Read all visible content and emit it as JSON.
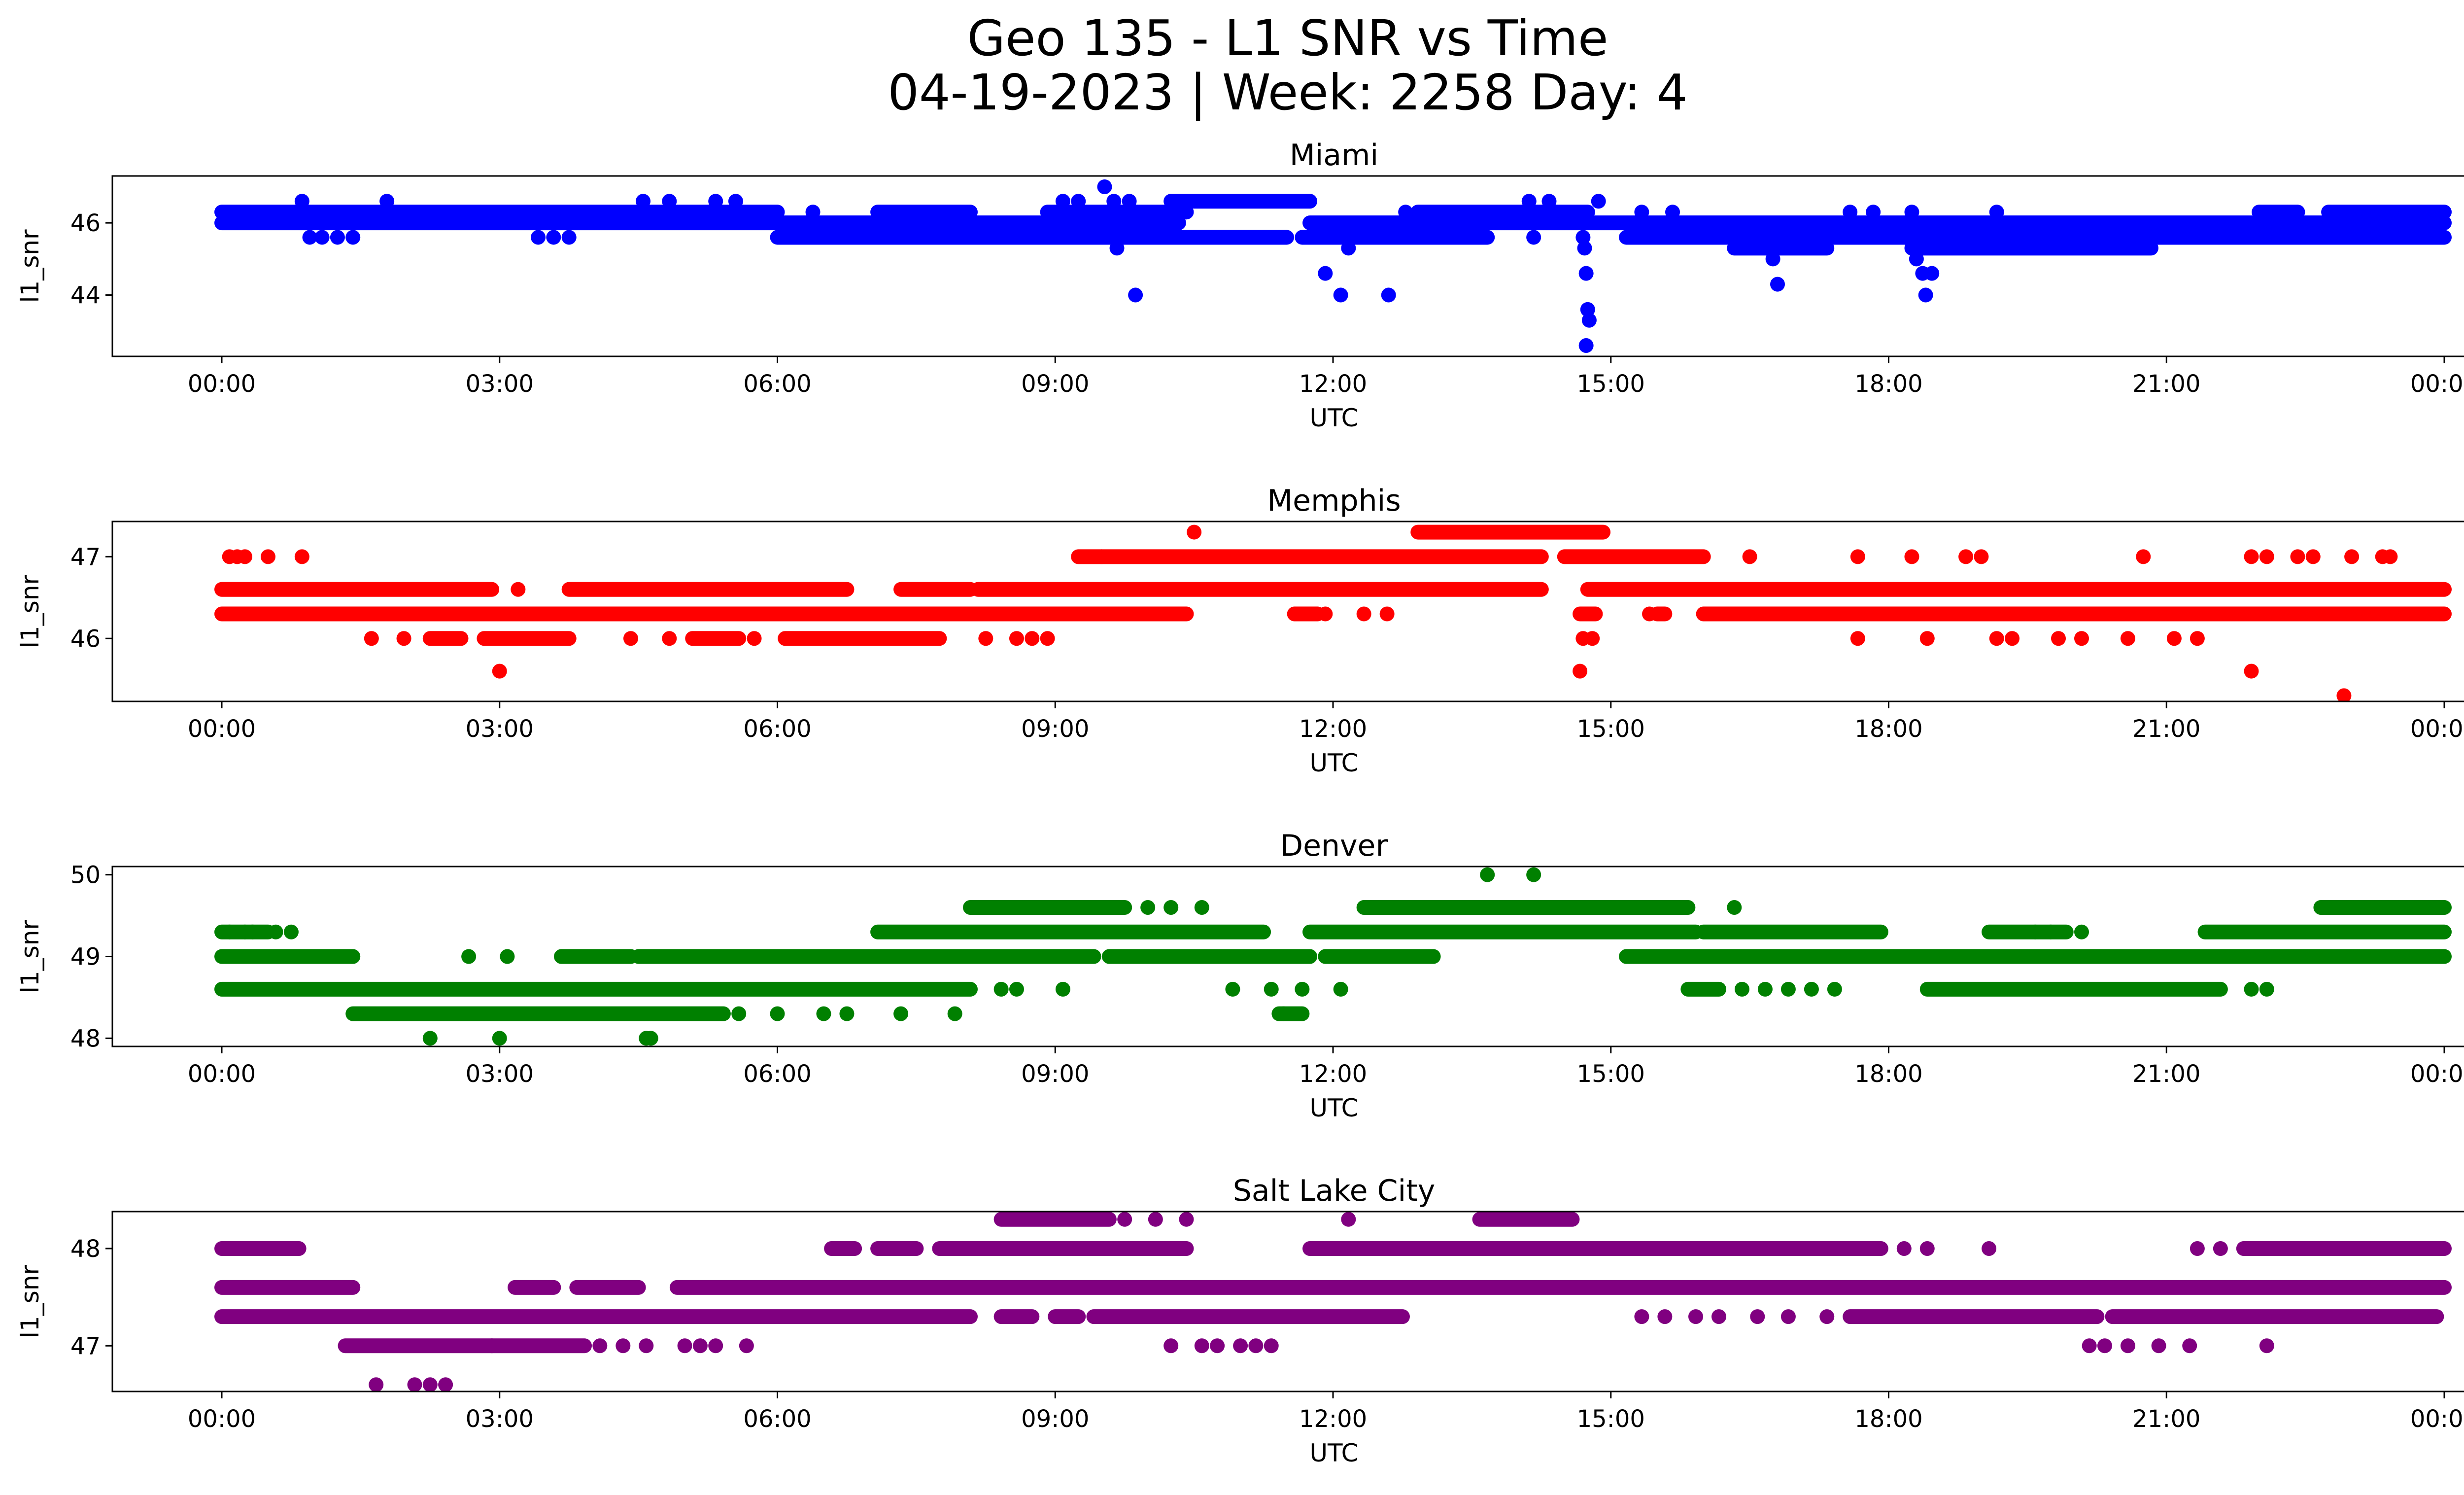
{
  "figure": {
    "title_line1": "Geo 135 - L1 SNR vs Time",
    "title_line2": "04-19-2023 | Week: 2258 Day: 4"
  },
  "chart_data": [
    {
      "type": "scatter",
      "title": "Miami",
      "xlabel": "UTC",
      "ylabel": "l1_snr",
      "color": "#0000ff",
      "xlim": [
        "2023-04-19 00:00",
        "2023-04-20 00:00"
      ],
      "x_ticks": [
        "00:00",
        "03:00",
        "06:00",
        "09:00",
        "12:00",
        "15:00",
        "18:00",
        "21:00",
        "00:00"
      ],
      "ylim": [
        42.3,
        47.3
      ],
      "y_ticks": [
        44,
        46
      ],
      "bands": [
        {
          "y": 46.3,
          "segments": [
            [
              "00:00",
              "06:00"
            ],
            [
              "07:05",
              "08:05"
            ],
            [
              "08:55",
              "10:25"
            ],
            [
              "12:55",
              "14:45"
            ],
            [
              "22:00",
              "22:25"
            ],
            [
              "22:45",
              "24:00"
            ]
          ]
        },
        {
          "y": 46.6,
          "segments": [
            [
              "10:15",
              "11:45"
            ]
          ]
        },
        {
          "y": 46.0,
          "segments": [
            [
              "00:00",
              "10:20"
            ],
            [
              "11:45",
              "24:00"
            ]
          ]
        },
        {
          "y": 45.6,
          "segments": [
            [
              "06:00",
              "11:30"
            ],
            [
              "11:40",
              "13:40"
            ],
            [
              "15:10",
              "24:00"
            ]
          ]
        },
        {
          "y": 45.3,
          "segments": [
            [
              "16:20",
              "17:20"
            ],
            [
              "18:15",
              "20:50"
            ]
          ]
        }
      ],
      "points": [
        [
          "00:52",
          46.6
        ],
        [
          "01:47",
          46.6
        ],
        [
          "04:33",
          46.6
        ],
        [
          "04:50",
          46.6
        ],
        [
          "05:20",
          46.6
        ],
        [
          "05:33",
          46.6
        ],
        [
          "06:23",
          46.3
        ],
        [
          "00:57",
          45.6
        ],
        [
          "01:05",
          45.6
        ],
        [
          "01:15",
          45.6
        ],
        [
          "01:25",
          45.6
        ],
        [
          "03:25",
          45.6
        ],
        [
          "03:35",
          45.6
        ],
        [
          "03:45",
          45.6
        ],
        [
          "09:05",
          46.6
        ],
        [
          "09:15",
          46.6
        ],
        [
          "09:32",
          47.0
        ],
        [
          "09:38",
          46.6
        ],
        [
          "09:48",
          46.6
        ],
        [
          "09:52",
          44.0
        ],
        [
          "09:40",
          45.3
        ],
        [
          "11:55",
          44.6
        ],
        [
          "12:05",
          44.0
        ],
        [
          "12:10",
          45.3
        ],
        [
          "12:36",
          44.0
        ],
        [
          "12:47",
          46.3
        ],
        [
          "14:07",
          46.6
        ],
        [
          "14:10",
          45.6
        ],
        [
          "14:20",
          46.6
        ],
        [
          "14:42",
          45.6
        ],
        [
          "14:43",
          45.3
        ],
        [
          "14:44",
          44.6
        ],
        [
          "14:45",
          43.6
        ],
        [
          "14:46",
          43.3
        ],
        [
          "14:44",
          42.6
        ],
        [
          "14:52",
          46.6
        ],
        [
          "15:20",
          46.3
        ],
        [
          "15:40",
          46.3
        ],
        [
          "16:45",
          45.0
        ],
        [
          "16:48",
          44.3
        ],
        [
          "17:35",
          46.3
        ],
        [
          "17:50",
          46.3
        ],
        [
          "18:15",
          46.3
        ],
        [
          "18:18",
          45.0
        ],
        [
          "18:22",
          44.6
        ],
        [
          "18:24",
          44.0
        ],
        [
          "18:28",
          44.6
        ],
        [
          "19:10",
          46.3
        ],
        [
          "22:52",
          45.6
        ],
        [
          "23:15",
          45.6
        ]
      ]
    },
    {
      "type": "scatter",
      "title": "Memphis",
      "xlabel": "UTC",
      "ylabel": "l1_snr",
      "color": "#ff0000",
      "xlim": [
        "2023-04-19 00:00",
        "2023-04-20 00:00"
      ],
      "x_ticks": [
        "00:00",
        "03:00",
        "06:00",
        "09:00",
        "12:00",
        "15:00",
        "18:00",
        "21:00",
        "00:00"
      ],
      "ylim": [
        45.23,
        47.43
      ],
      "y_ticks": [
        46,
        47
      ],
      "bands": [
        {
          "y": 47.3,
          "segments": [
            [
              "12:55",
              "14:55"
            ]
          ]
        },
        {
          "y": 47.0,
          "segments": [
            [
              "09:15",
              "14:15"
            ],
            [
              "14:30",
              "16:00"
            ]
          ]
        },
        {
          "y": 46.6,
          "segments": [
            [
              "00:00",
              "02:55"
            ],
            [
              "03:45",
              "06:45"
            ],
            [
              "07:20",
              "08:05"
            ],
            [
              "08:10",
              "14:15"
            ],
            [
              "14:45",
              "24:00"
            ]
          ]
        },
        {
          "y": 46.3,
          "segments": [
            [
              "00:00",
              "10:25"
            ],
            [
              "11:35",
              "11:50"
            ],
            [
              "14:40",
              "14:50"
            ],
            [
              "15:30",
              "15:35"
            ],
            [
              "16:00",
              "24:00"
            ]
          ]
        },
        {
          "y": 46.0,
          "segments": [
            [
              "02:15",
              "02:35"
            ],
            [
              "02:50",
              "03:45"
            ],
            [
              "05:05",
              "05:35"
            ],
            [
              "06:05",
              "07:45"
            ]
          ]
        }
      ],
      "points": [
        [
          "00:05",
          47.0
        ],
        [
          "00:10",
          47.0
        ],
        [
          "00:15",
          47.0
        ],
        [
          "00:30",
          47.0
        ],
        [
          "00:52",
          47.0
        ],
        [
          "01:37",
          46.0
        ],
        [
          "01:58",
          46.0
        ],
        [
          "03:00",
          45.6
        ],
        [
          "03:12",
          46.6
        ],
        [
          "04:25",
          46.0
        ],
        [
          "04:50",
          46.0
        ],
        [
          "05:45",
          46.0
        ],
        [
          "08:15",
          46.0
        ],
        [
          "08:35",
          46.0
        ],
        [
          "08:45",
          46.0
        ],
        [
          "08:55",
          46.0
        ],
        [
          "09:30",
          47.0
        ],
        [
          "10:30",
          47.3
        ],
        [
          "11:45",
          46.3
        ],
        [
          "11:55",
          46.3
        ],
        [
          "12:20",
          46.3
        ],
        [
          "12:35",
          46.3
        ],
        [
          "14:40",
          45.6
        ],
        [
          "14:42",
          46.0
        ],
        [
          "14:48",
          46.0
        ],
        [
          "15:25",
          46.3
        ],
        [
          "16:30",
          47.0
        ],
        [
          "17:40",
          47.0
        ],
        [
          "17:40",
          46.0
        ],
        [
          "18:15",
          47.0
        ],
        [
          "18:25",
          46.0
        ],
        [
          "18:50",
          47.0
        ],
        [
          "19:00",
          47.0
        ],
        [
          "19:10",
          46.0
        ],
        [
          "19:20",
          46.0
        ],
        [
          "19:50",
          46.0
        ],
        [
          "20:05",
          46.0
        ],
        [
          "20:35",
          46.0
        ],
        [
          "20:45",
          47.0
        ],
        [
          "21:05",
          46.0
        ],
        [
          "21:20",
          46.0
        ],
        [
          "21:55",
          47.0
        ],
        [
          "22:05",
          47.0
        ],
        [
          "22:25",
          47.0
        ],
        [
          "22:35",
          47.0
        ],
        [
          "23:00",
          47.0
        ],
        [
          "23:20",
          47.0
        ],
        [
          "23:25",
          47.0
        ],
        [
          "21:55",
          45.6
        ],
        [
          "22:55",
          45.3
        ]
      ]
    },
    {
      "type": "scatter",
      "title": "Denver",
      "xlabel": "UTC",
      "ylabel": "l1_snr",
      "color": "#008000",
      "xlim": [
        "2023-04-19 00:00",
        "2023-04-20 00:00"
      ],
      "x_ticks": [
        "00:00",
        "03:00",
        "06:00",
        "09:00",
        "12:00",
        "15:00",
        "18:00",
        "21:00",
        "00:00"
      ],
      "ylim": [
        47.9,
        50.1
      ],
      "y_ticks": [
        48,
        49,
        50
      ],
      "bands": [
        {
          "y": 49.6,
          "segments": [
            [
              "08:05",
              "09:45"
            ],
            [
              "12:20",
              "15:50"
            ],
            [
              "22:40",
              "24:00"
            ]
          ]
        },
        {
          "y": 49.3,
          "segments": [
            [
              "00:00",
              "00:30"
            ],
            [
              "07:05",
              "11:15"
            ],
            [
              "11:45",
              "15:55"
            ],
            [
              "16:00",
              "17:55"
            ],
            [
              "19:05",
              "19:55"
            ],
            [
              "21:25",
              "24:00"
            ]
          ]
        },
        {
          "y": 49.0,
          "segments": [
            [
              "00:00",
              "01:25"
            ],
            [
              "03:40",
              "04:25"
            ],
            [
              "04:30",
              "09:25"
            ],
            [
              "09:35",
              "11:45"
            ],
            [
              "11:55",
              "13:05"
            ],
            [
              "15:10",
              "24:00"
            ]
          ]
        },
        {
          "y": 48.6,
          "segments": [
            [
              "00:00",
              "08:05"
            ],
            [
              "15:50",
              "16:10"
            ],
            [
              "18:25",
              "21:35"
            ]
          ]
        },
        {
          "y": 48.3,
          "segments": [
            [
              "01:25",
              "05:25"
            ],
            [
              "11:25",
              "11:40"
            ]
          ]
        }
      ],
      "points": [
        [
          "00:05",
          49.3
        ],
        [
          "00:15",
          49.3
        ],
        [
          "00:20",
          49.3
        ],
        [
          "00:35",
          49.3
        ],
        [
          "00:45",
          49.3
        ],
        [
          "02:15",
          48.0
        ],
        [
          "02:40",
          49.0
        ],
        [
          "03:00",
          48.0
        ],
        [
          "03:05",
          49.0
        ],
        [
          "04:35",
          48.0
        ],
        [
          "04:38",
          48.0
        ],
        [
          "05:35",
          48.3
        ],
        [
          "06:00",
          48.3
        ],
        [
          "06:30",
          48.3
        ],
        [
          "06:45",
          48.3
        ],
        [
          "07:20",
          48.3
        ],
        [
          "07:55",
          48.3
        ],
        [
          "08:25",
          48.6
        ],
        [
          "08:35",
          48.6
        ],
        [
          "09:05",
          48.6
        ],
        [
          "10:00",
          49.6
        ],
        [
          "10:15",
          49.6
        ],
        [
          "10:35",
          49.6
        ],
        [
          "10:55",
          48.6
        ],
        [
          "11:20",
          48.6
        ],
        [
          "11:28",
          48.3
        ],
        [
          "11:40",
          48.6
        ],
        [
          "12:05",
          48.6
        ],
        [
          "13:40",
          50.0
        ],
        [
          "14:10",
          50.0
        ],
        [
          "16:20",
          49.6
        ],
        [
          "16:25",
          48.6
        ],
        [
          "16:40",
          48.6
        ],
        [
          "16:55",
          48.6
        ],
        [
          "17:10",
          48.6
        ],
        [
          "17:25",
          48.6
        ],
        [
          "19:35",
          49.3
        ],
        [
          "19:45",
          49.3
        ],
        [
          "20:05",
          49.3
        ],
        [
          "21:55",
          48.6
        ],
        [
          "22:05",
          48.6
        ]
      ]
    },
    {
      "type": "scatter",
      "title": "Salt Lake City",
      "xlabel": "UTC",
      "ylabel": "l1_snr",
      "color": "#800080",
      "xlim": [
        "2023-04-19 00:00",
        "2023-04-20 00:00"
      ],
      "x_ticks": [
        "00:00",
        "03:00",
        "06:00",
        "09:00",
        "12:00",
        "15:00",
        "18:00",
        "21:00",
        "00:00"
      ],
      "ylim": [
        46.53,
        48.38
      ],
      "y_ticks": [
        47,
        48
      ],
      "bands": [
        {
          "y": 48.3,
          "segments": [
            [
              "08:25",
              "09:35"
            ],
            [
              "13:35",
              "14:35"
            ]
          ]
        },
        {
          "y": 48.0,
          "segments": [
            [
              "00:00",
              "00:50"
            ],
            [
              "06:35",
              "06:50"
            ],
            [
              "07:05",
              "07:30"
            ],
            [
              "07:45",
              "10:25"
            ],
            [
              "11:45",
              "17:55"
            ],
            [
              "21:50",
              "24:00"
            ]
          ]
        },
        {
          "y": 47.6,
          "segments": [
            [
              "00:00",
              "01:25"
            ],
            [
              "03:10",
              "03:35"
            ],
            [
              "03:50",
              "04:30"
            ],
            [
              "04:55",
              "24:00"
            ]
          ]
        },
        {
          "y": 47.3,
          "segments": [
            [
              "00:00",
              "08:05"
            ],
            [
              "08:25",
              "08:45"
            ],
            [
              "09:00",
              "09:15"
            ],
            [
              "09:25",
              "12:45"
            ],
            [
              "17:35",
              "20:15"
            ],
            [
              "20:25",
              "23:55"
            ]
          ]
        },
        {
          "y": 47.0,
          "segments": [
            [
              "01:20",
              "02:55"
            ],
            [
              "02:55",
              "03:55"
            ]
          ]
        }
      ],
      "points": [
        [
          "01:40",
          46.6
        ],
        [
          "02:05",
          46.6
        ],
        [
          "02:15",
          46.6
        ],
        [
          "02:25",
          46.6
        ],
        [
          "04:05",
          47.0
        ],
        [
          "04:20",
          47.0
        ],
        [
          "04:35",
          47.0
        ],
        [
          "05:00",
          47.0
        ],
        [
          "05:10",
          47.0
        ],
        [
          "05:20",
          47.0
        ],
        [
          "05:40",
          47.0
        ],
        [
          "10:15",
          47.0
        ],
        [
          "10:35",
          47.0
        ],
        [
          "10:45",
          47.0
        ],
        [
          "11:00",
          47.0
        ],
        [
          "11:10",
          47.0
        ],
        [
          "11:20",
          47.0
        ],
        [
          "09:45",
          48.3
        ],
        [
          "10:05",
          48.3
        ],
        [
          "10:25",
          48.3
        ],
        [
          "12:10",
          48.3
        ],
        [
          "15:20",
          47.3
        ],
        [
          "15:35",
          47.3
        ],
        [
          "15:55",
          47.3
        ],
        [
          "16:10",
          47.3
        ],
        [
          "16:35",
          47.3
        ],
        [
          "16:55",
          47.3
        ],
        [
          "17:20",
          47.3
        ],
        [
          "18:10",
          48.0
        ],
        [
          "18:25",
          48.0
        ],
        [
          "19:05",
          48.0
        ],
        [
          "20:10",
          47.0
        ],
        [
          "20:20",
          47.0
        ],
        [
          "20:35",
          47.0
        ],
        [
          "20:55",
          47.0
        ],
        [
          "21:15",
          47.0
        ],
        [
          "21:20",
          48.0
        ],
        [
          "21:35",
          48.0
        ],
        [
          "22:05",
          47.0
        ]
      ]
    }
  ]
}
